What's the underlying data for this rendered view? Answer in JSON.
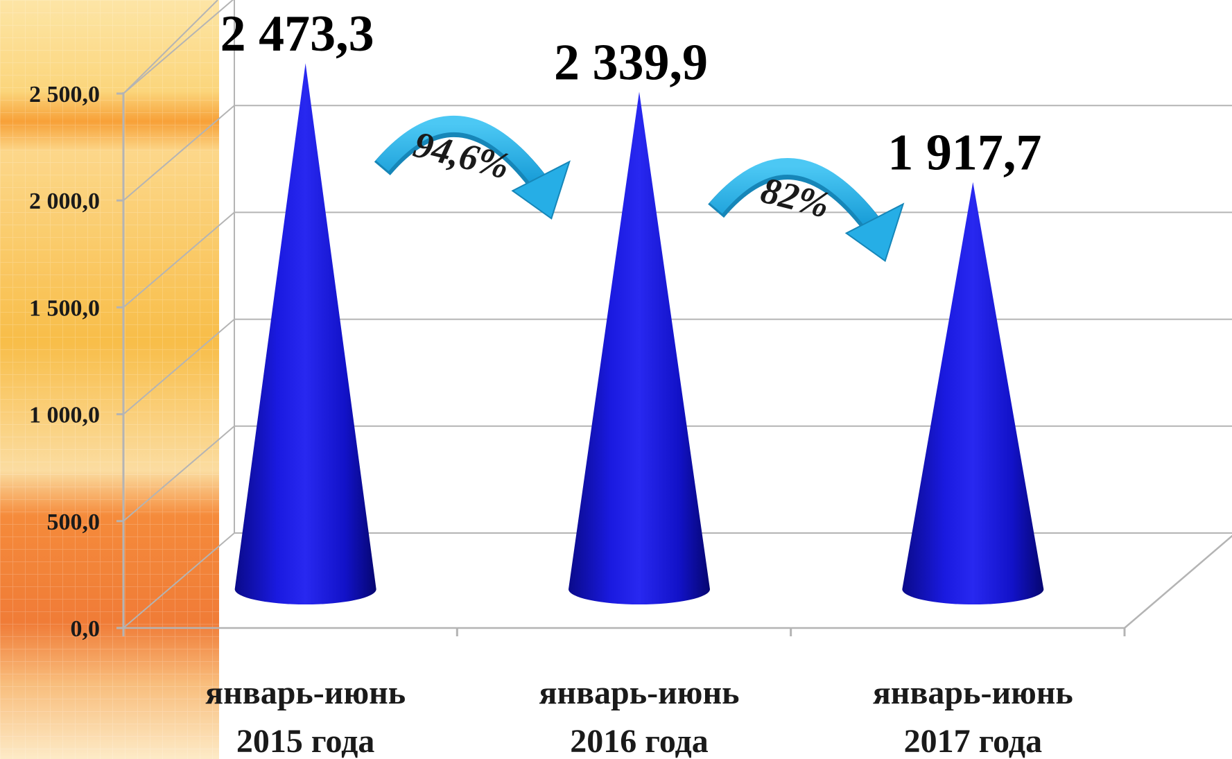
{
  "chart_data": {
    "type": "bar",
    "bar_shape": "cone",
    "categories": [
      [
        "январь-июнь",
        "2015 года"
      ],
      [
        "январь-июнь",
        "2016 года"
      ],
      [
        "январь-июнь",
        "2017 года"
      ]
    ],
    "values": [
      2473.3,
      2339.9,
      1917.7
    ],
    "value_labels": [
      "2 473,3",
      "2 339,9",
      "1 917,7"
    ],
    "ylim": [
      0,
      2500
    ],
    "y_ticks": [
      0,
      500,
      1000,
      1500,
      2000,
      2500
    ],
    "y_tick_labels": [
      "0,0",
      "500,0",
      "1 000,0",
      "1 500,0",
      "2 000,0",
      "2 500,0"
    ],
    "grid": true,
    "change_annotations": [
      {
        "from": 0,
        "to": 1,
        "label": "94,6%"
      },
      {
        "from": 1,
        "to": 2,
        "label": "82%"
      }
    ],
    "colors": {
      "cone": "#1010d8",
      "arrow": "#2ab4ea",
      "grid": "#b4b4b4",
      "background_strip": "#f6a81c"
    }
  }
}
